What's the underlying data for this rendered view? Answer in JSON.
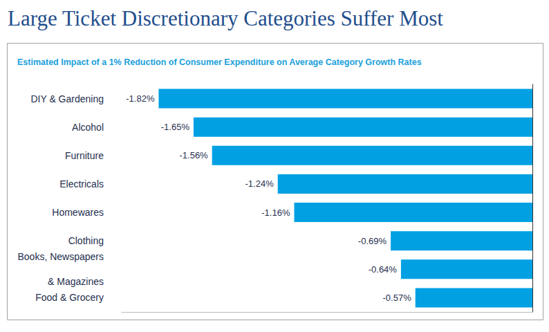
{
  "chart_data": {
    "type": "bar",
    "title": "Large Ticket Discretionary Categories Suffer Most",
    "subtitle": "Estimated Impact of a 1% Reduction of Consumer Expenditure on Average Category Growth Rates",
    "orientation": "horizontal",
    "categories": [
      "DIY & Gardening",
      "Alcohol",
      "Furniture",
      "Electricals",
      "Homewares",
      "Clothing",
      "Books, Newspapers\n& Magazines",
      "Food & Grocery"
    ],
    "values": [
      -1.82,
      -1.65,
      -1.56,
      -1.24,
      -1.16,
      -0.69,
      -0.64,
      -0.57
    ],
    "value_labels": [
      "-1.82%",
      "-1.65%",
      "-1.56%",
      "-1.24%",
      "-1.16%",
      "-0.69%",
      "-0.64%",
      "-0.57%"
    ],
    "color": "#00a0e3",
    "xlim": [
      -2,
      0
    ],
    "data_labels": true,
    "tick_labels": false
  }
}
